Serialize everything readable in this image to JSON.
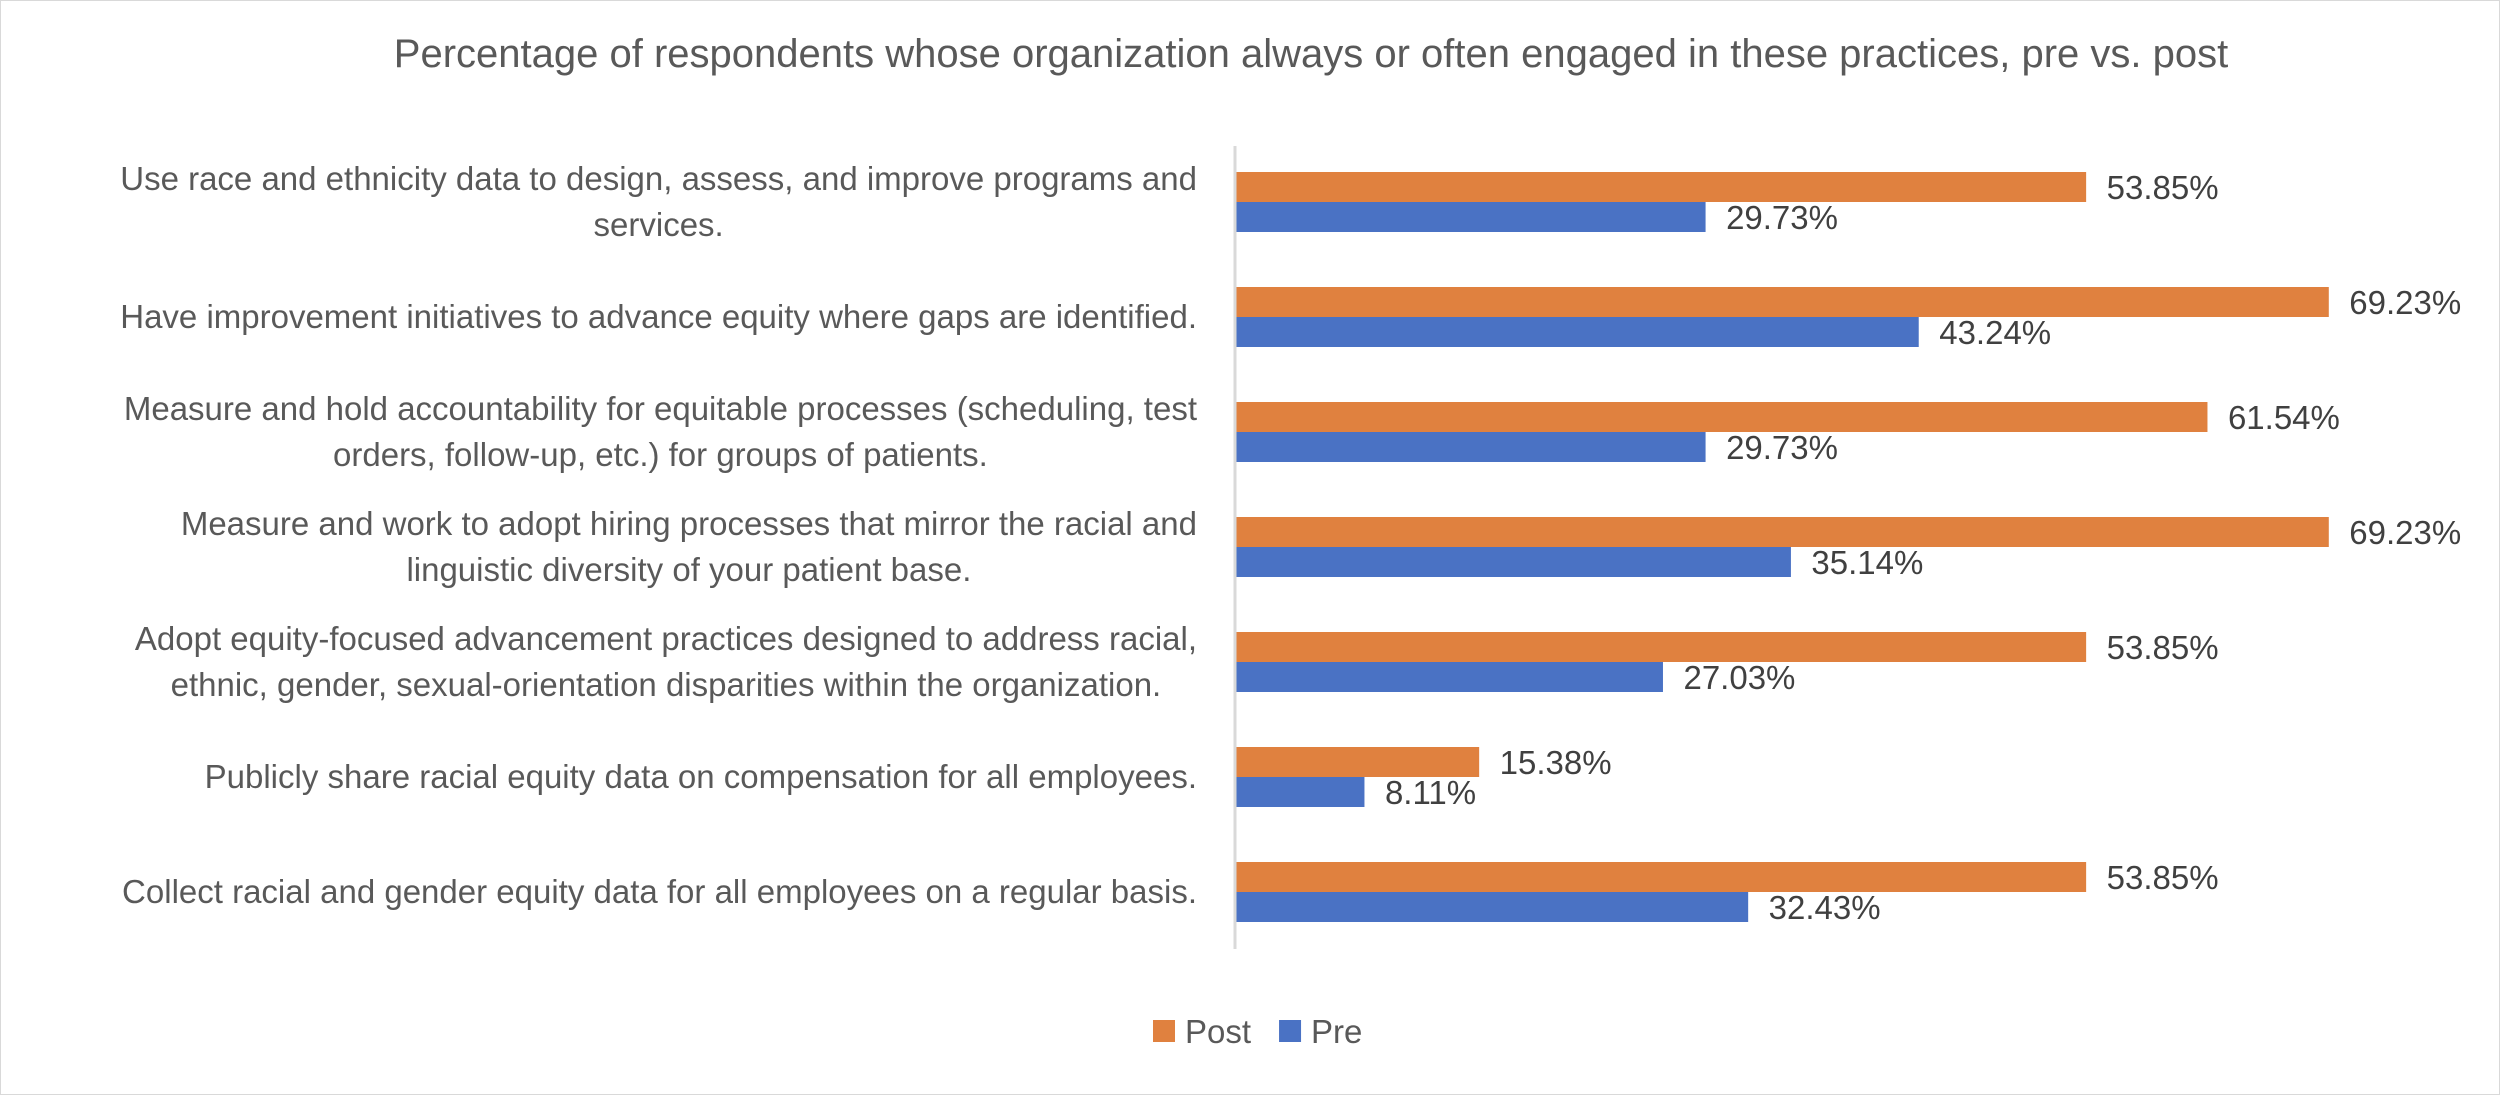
{
  "chart_data": {
    "type": "bar",
    "orientation": "horizontal",
    "title": "Percentage of respondents whose organization always or often engaged in these practices, pre vs. post",
    "categories": [
      [
        "Use race and ethnicity data to design, assess, and improve programs and",
        "services."
      ],
      [
        "Have improvement initiatives to advance equity where gaps are identified."
      ],
      [
        "Measure and hold accountability for equitable processes (scheduling, test",
        "orders, follow-up, etc.) for groups of patients."
      ],
      [
        "Measure and work to adopt hiring processes that mirror the racial and",
        "linguistic diversity of your patient base."
      ],
      [
        "Adopt equity-focused advancement practices designed to address racial,",
        "ethnic, gender, sexual-orientation disparities within the organization."
      ],
      [
        "Publicly share racial equity data on compensation for all employees."
      ],
      [
        "Collect racial and gender equity data for all employees on a regular basis."
      ]
    ],
    "series": [
      {
        "name": "Post",
        "color": "#E0813F",
        "values": [
          53.85,
          69.23,
          61.54,
          69.23,
          53.85,
          15.38,
          53.85
        ],
        "labels": [
          "53.85%",
          "69.23%",
          "61.54%",
          "69.23%",
          "53.85%",
          "15.38%",
          "53.85%"
        ]
      },
      {
        "name": "Pre",
        "color": "#4A72C4",
        "values": [
          29.73,
          43.24,
          29.73,
          35.14,
          27.03,
          8.11,
          32.43
        ],
        "labels": [
          "29.73%",
          "43.24%",
          "29.73%",
          "35.14%",
          "27.03%",
          "8.11%",
          "32.43%"
        ]
      }
    ],
    "legend": [
      {
        "name": "Post",
        "color": "#E0813F"
      },
      {
        "name": "Pre",
        "color": "#4A72C4"
      }
    ],
    "xlim": [
      0,
      72
    ],
    "xlabel": "",
    "ylabel": "",
    "grid": false,
    "legend_position": "bottom"
  }
}
